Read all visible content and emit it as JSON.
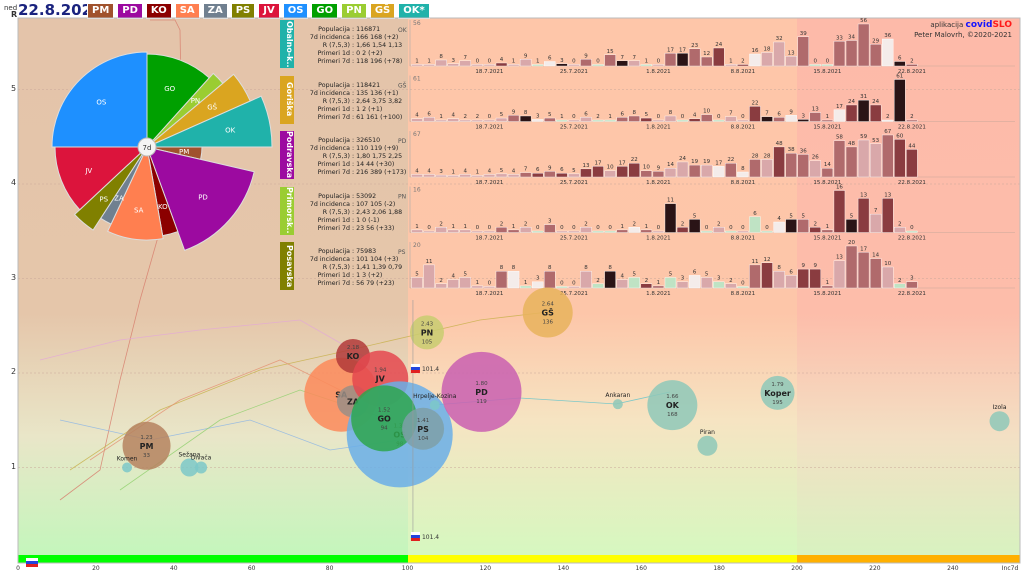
{
  "header": {
    "day": "ned",
    "date": "22.8.2021",
    "legend": [
      {
        "code": "PM",
        "color": "#a0522d"
      },
      {
        "code": "PD",
        "color": "#9c0aa0"
      },
      {
        "code": "KO",
        "color": "#8b0000"
      },
      {
        "code": "SA",
        "color": "#ff7f50"
      },
      {
        "code": "ZA",
        "color": "#708090"
      },
      {
        "code": "PS",
        "color": "#808000"
      },
      {
        "code": "JV",
        "color": "#dc143c"
      },
      {
        "code": "OS",
        "color": "#1e90ff"
      },
      {
        "code": "GO",
        "color": "#00a000"
      },
      {
        "code": "PN",
        "color": "#9acd32"
      },
      {
        "code": "GŠ",
        "color": "#daa520"
      },
      {
        "code": "OK*",
        "color": "#20b2aa"
      }
    ]
  },
  "credits": {
    "prefix": "aplikacija",
    "brand_a": "covid",
    "brand_b": "SLO",
    "author": "Peter Malovrh, ©2020-2021"
  },
  "axes": {
    "y_label": "R",
    "y_ticks": [
      "1",
      "2",
      "3",
      "4",
      "5"
    ],
    "x_ticks": [
      "0",
      "20",
      "40",
      "60",
      "80",
      "100",
      "120",
      "140",
      "160",
      "180",
      "200",
      "220",
      "240"
    ],
    "x_label": "Inc7d"
  },
  "pie": {
    "center_label": "7d",
    "slices": [
      {
        "code": "GO",
        "color": "#00a000"
      },
      {
        "code": "PN",
        "color": "#9acd32"
      },
      {
        "code": "GŠ",
        "color": "#daa520"
      },
      {
        "code": "OK",
        "color": "#20b2aa"
      },
      {
        "code": "PM",
        "color": "#a0522d"
      },
      {
        "code": "PD",
        "color": "#9c0aa0"
      },
      {
        "code": "KO",
        "color": "#8b0000"
      },
      {
        "code": "SA",
        "color": "#ff7f50"
      },
      {
        "code": "ZA",
        "color": "#708090"
      },
      {
        "code": "PS",
        "color": "#808000"
      },
      {
        "code": "JV",
        "color": "#dc143c"
      },
      {
        "code": "OS",
        "color": "#1e90ff"
      }
    ]
  },
  "panel_labels": {
    "population": "Populacija",
    "incidence": "7d incidenca",
    "r": "R (7,5,3)",
    "cases_1d": "Primeri 1d",
    "cases_7d": "Primeri 7d",
    "sep": " : "
  },
  "dates": [
    "18.7.2021",
    "25.7.2021",
    "1.8.2021",
    "8.8.2021",
    "15.8.2021",
    "22.8.2021"
  ],
  "panels": [
    {
      "code": "OK",
      "name": "Obalno-k..",
      "color": "#20b2aa",
      "max": "56",
      "population": "116871",
      "incidence": "166 168 (+2)",
      "r": "1,66 1,54 1,13",
      "cases_1d": "0 2 (+2)",
      "cases_7d": "118 196 (+78)",
      "values": [
        1,
        1,
        8,
        3,
        7,
        0,
        0,
        4,
        1,
        9,
        1,
        6,
        3,
        0,
        9,
        0,
        15,
        7,
        7,
        1,
        0,
        17,
        17,
        23,
        12,
        24,
        1,
        2,
        16,
        18,
        32,
        13,
        39,
        0,
        0,
        33,
        34,
        56,
        29,
        36,
        6,
        2
      ]
    },
    {
      "code": "GŠ",
      "name": "Goriška",
      "color": "#daa520",
      "max": "61",
      "population": "118421",
      "incidence": "135 136 (+1)",
      "r": "2,64 3,75 3,82",
      "cases_1d": "1 2 (+1)",
      "cases_7d": "61 161 (+100)",
      "values": [
        4,
        6,
        1,
        4,
        2,
        2,
        0,
        5,
        9,
        8,
        3,
        5,
        1,
        0,
        6,
        2,
        1,
        6,
        8,
        5,
        0,
        8,
        0,
        4,
        10,
        0,
        7,
        0,
        22,
        7,
        6,
        9,
        3,
        13,
        1,
        17,
        24,
        31,
        24,
        2,
        61,
        2
      ]
    },
    {
      "code": "PD",
      "name": "Podravska",
      "color": "#9c0aa0",
      "max": "67",
      "population": "326510",
      "incidence": "110 119 (+9)",
      "r": "1,80 1,75 2,25",
      "cases_1d": "14 44 (+30)",
      "cases_7d": "216 389 (+173)",
      "values": [
        4,
        4,
        3,
        1,
        4,
        1,
        4,
        5,
        4,
        7,
        6,
        9,
        6,
        5,
        13,
        17,
        10,
        17,
        22,
        10,
        9,
        14,
        24,
        19,
        19,
        17,
        22,
        8,
        28,
        28,
        48,
        38,
        36,
        26,
        14,
        58,
        48,
        59,
        53,
        67,
        60,
        44
      ]
    },
    {
      "code": "PN",
      "name": "Primorsk..",
      "color": "#9acd32",
      "max": "16",
      "population": "53092",
      "incidence": "107 105 (-2)",
      "r": "2,43 2,06 1,88",
      "cases_1d": "1 0 (-1)",
      "cases_7d": "23 56 (+33)",
      "values": [
        1,
        0,
        2,
        1,
        1,
        0,
        0,
        2,
        1,
        2,
        0,
        3,
        0,
        0,
        2,
        0,
        0,
        1,
        2,
        1,
        0,
        11,
        2,
        5,
        0,
        2,
        0,
        0,
        6,
        0,
        4,
        5,
        5,
        2,
        1,
        16,
        5,
        13,
        7,
        13,
        2,
        0
      ]
    },
    {
      "code": "PS",
      "name": "Posavska",
      "color": "#808000",
      "max": "20",
      "population": "75983",
      "incidence": "101 104 (+3)",
      "r": "1,41 1,39 0,79",
      "cases_1d": "1 3 (+2)",
      "cases_7d": "56 79 (+23)",
      "values": [
        5,
        11,
        2,
        4,
        5,
        1,
        0,
        8,
        8,
        1,
        3,
        8,
        0,
        0,
        8,
        2,
        8,
        4,
        5,
        2,
        1,
        5,
        3,
        6,
        5,
        3,
        2,
        0,
        11,
        12,
        8,
        6,
        9,
        9,
        1,
        13,
        20,
        17,
        14,
        10,
        2,
        3
      ]
    }
  ],
  "slovenia": {
    "inc7d": 101.4,
    "label": "101.4"
  },
  "bubbles": [
    {
      "name": "PM",
      "R": 1.23,
      "inc7d": 33,
      "r_label": "1.23",
      "inc_label": "33",
      "color": "#b5835f"
    },
    {
      "name": "SA",
      "R": 1.77,
      "inc7d": 83,
      "color": "#fb8a5a"
    },
    {
      "name": "KO",
      "R": 2.18,
      "inc7d": 86,
      "r_label": "2.18",
      "color": "#b23a3a"
    },
    {
      "name": "ZA",
      "R": 1.7,
      "inc7d": 86,
      "color": "#9a8e86"
    },
    {
      "name": "JV",
      "R": 1.94,
      "inc7d": 93,
      "r_label": "1.94",
      "color": "#e4484f"
    },
    {
      "name": "OS",
      "R": 1.35,
      "inc7d": 98,
      "r_label": "1.35",
      "inc_label": "98",
      "color": "#6aaee8"
    },
    {
      "name": "GO",
      "R": 1.52,
      "inc7d": 94,
      "r_label": "1.52",
      "inc_label": "94",
      "color": "#2ea64e"
    },
    {
      "name": "PS",
      "R": 1.41,
      "inc7d": 104,
      "r_label": "1.41",
      "inc_label": "104",
      "color": "#7ea0a8"
    },
    {
      "name": "PD",
      "R": 1.8,
      "inc7d": 119,
      "r_label": "1.80",
      "inc_label": "119",
      "color": "#c95fb0"
    },
    {
      "name": "PN",
      "R": 2.43,
      "inc7d": 105,
      "r_label": "2.43",
      "inc_label": "105",
      "color": "#c8cc70"
    },
    {
      "name": "GŠ",
      "R": 2.64,
      "inc7d": 136,
      "r_label": "2.64",
      "inc_label": "136",
      "color": "#e8b35c"
    },
    {
      "name": "OK",
      "R": 1.66,
      "inc7d": 168,
      "r_label": "1.66",
      "inc_label": "168",
      "color": "#8ec8b8"
    },
    {
      "name": "Koper",
      "R": 1.79,
      "inc7d": 195,
      "r_label": "1.79",
      "inc_label": "195",
      "color": "#8ec8b8"
    },
    {
      "name": "Izola",
      "R": 1.49,
      "inc7d": 252,
      "color": "#8ec8b8"
    },
    {
      "name": "Piran",
      "R": 1.23,
      "inc7d": 177,
      "color": "#8ec8b8"
    },
    {
      "name": "Ankaran",
      "R": 1.67,
      "inc7d": 154,
      "color": "#8ec8b8"
    },
    {
      "name": "Hrpelje-Kozina",
      "R": 1.66,
      "inc7d": 107,
      "color": "#7cc8c8"
    },
    {
      "name": "Komen",
      "R": 1.0,
      "inc7d": 28,
      "color": "#7cc8c8"
    },
    {
      "name": "Sežana",
      "R": 1.0,
      "inc7d": 44,
      "color": "#7cc8c8"
    },
    {
      "name": "Divača",
      "R": 1.0,
      "inc7d": 47,
      "color": "#7cc8c8"
    }
  ]
}
